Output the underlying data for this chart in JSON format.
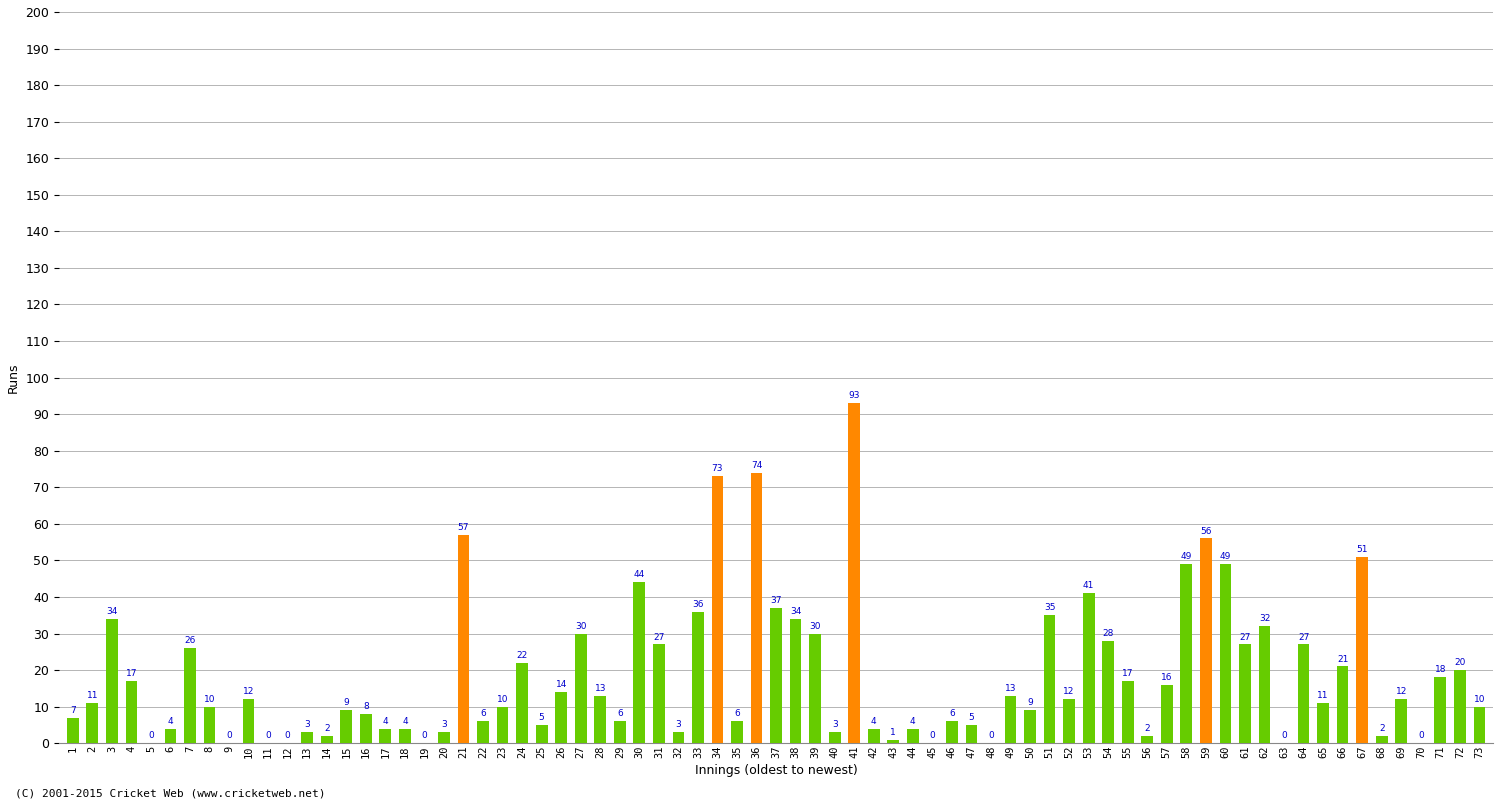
{
  "innings": [
    1,
    2,
    3,
    4,
    5,
    6,
    7,
    8,
    9,
    10,
    11,
    12,
    13,
    14,
    15,
    16,
    17,
    18,
    19,
    20,
    21,
    22,
    23,
    24,
    25,
    26,
    27,
    28,
    29,
    30,
    31,
    32,
    33,
    34,
    35,
    36,
    37,
    38,
    39,
    40,
    41,
    42,
    43,
    44,
    45,
    46,
    47,
    48,
    49,
    50,
    51,
    52,
    53,
    54,
    55,
    56,
    57,
    58,
    59,
    60,
    61,
    62,
    63,
    64,
    65,
    66,
    67,
    68,
    69,
    70,
    71,
    72,
    73
  ],
  "values": [
    7,
    11,
    34,
    17,
    0,
    4,
    26,
    10,
    0,
    12,
    0,
    0,
    3,
    2,
    9,
    8,
    4,
    4,
    0,
    3,
    57,
    6,
    10,
    22,
    5,
    14,
    30,
    13,
    6,
    44,
    27,
    3,
    36,
    73,
    6,
    74,
    37,
    34,
    30,
    3,
    93,
    4,
    1,
    4,
    0,
    6,
    5,
    0,
    13,
    9,
    35,
    12,
    41,
    28,
    17,
    2,
    16,
    49,
    56,
    49,
    27,
    32,
    0,
    27,
    11,
    21,
    51,
    2,
    12,
    0,
    18,
    20,
    10
  ],
  "colors": [
    "#66cc00",
    "#66cc00",
    "#66cc00",
    "#66cc00",
    "#66cc00",
    "#66cc00",
    "#66cc00",
    "#66cc00",
    "#66cc00",
    "#66cc00",
    "#66cc00",
    "#66cc00",
    "#66cc00",
    "#66cc00",
    "#66cc00",
    "#66cc00",
    "#66cc00",
    "#66cc00",
    "#66cc00",
    "#66cc00",
    "#ff8800",
    "#66cc00",
    "#66cc00",
    "#66cc00",
    "#66cc00",
    "#66cc00",
    "#66cc00",
    "#66cc00",
    "#66cc00",
    "#66cc00",
    "#66cc00",
    "#66cc00",
    "#66cc00",
    "#ff8800",
    "#66cc00",
    "#ff8800",
    "#66cc00",
    "#66cc00",
    "#66cc00",
    "#66cc00",
    "#ff8800",
    "#66cc00",
    "#66cc00",
    "#66cc00",
    "#66cc00",
    "#66cc00",
    "#66cc00",
    "#66cc00",
    "#66cc00",
    "#66cc00",
    "#66cc00",
    "#66cc00",
    "#66cc00",
    "#66cc00",
    "#66cc00",
    "#66cc00",
    "#66cc00",
    "#66cc00",
    "#ff8800",
    "#66cc00",
    "#66cc00",
    "#66cc00",
    "#66cc00",
    "#66cc00",
    "#66cc00",
    "#66cc00",
    "#ff8800",
    "#66cc00",
    "#66cc00",
    "#66cc00",
    "#66cc00",
    "#66cc00",
    "#66cc00"
  ],
  "ylabel": "Runs",
  "xlabel": "Innings (oldest to newest)",
  "ylim": [
    0,
    200
  ],
  "yticks": [
    0,
    10,
    20,
    30,
    40,
    50,
    60,
    70,
    80,
    90,
    100,
    110,
    120,
    130,
    140,
    150,
    160,
    170,
    180,
    190,
    200
  ],
  "bg_color": "#ffffff",
  "grid_color": "#aaaaaa",
  "bar_value_color": "#0000cc",
  "footnote": "(C) 2001-2015 Cricket Web (www.cricketweb.net)"
}
